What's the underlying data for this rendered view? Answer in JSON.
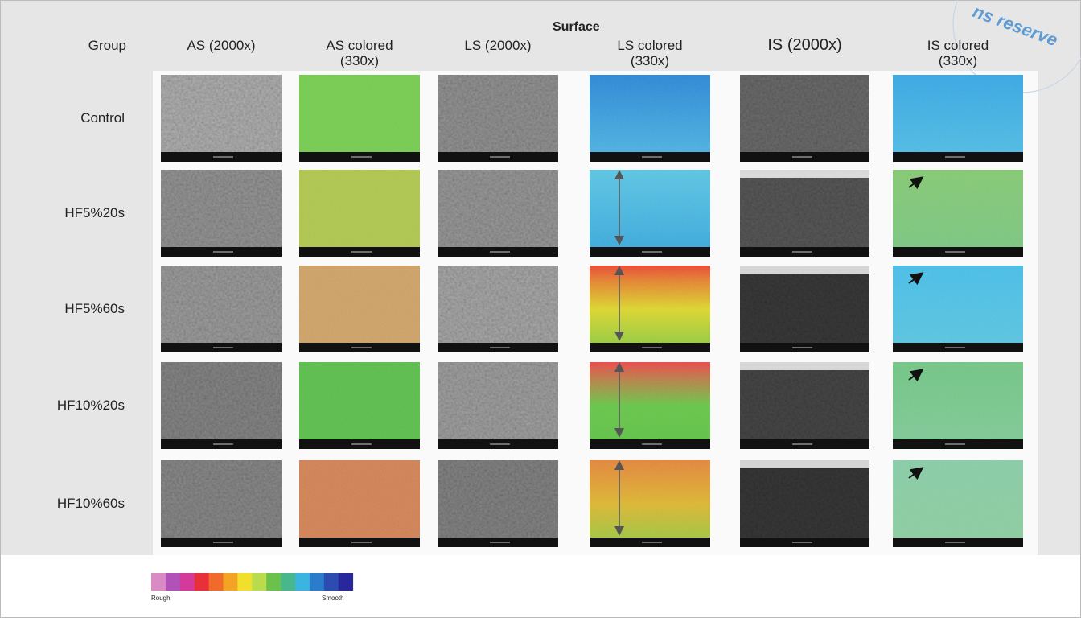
{
  "figure": {
    "header": {
      "title": "Surface",
      "group_label": "Group"
    },
    "columns": [
      "AS (2000x)",
      "AS colored (330x)",
      "LS (2000x)",
      "LS colored (330x)",
      "IS (2000x)",
      "IS colored (330x)"
    ],
    "rows": [
      "Control",
      "HF5%20s",
      "HF5%60s",
      "HF10%20s",
      "HF10%60s"
    ],
    "legend": {
      "low": "Rough",
      "high": "Smooth"
    },
    "watermark": "ns reserve"
  }
}
